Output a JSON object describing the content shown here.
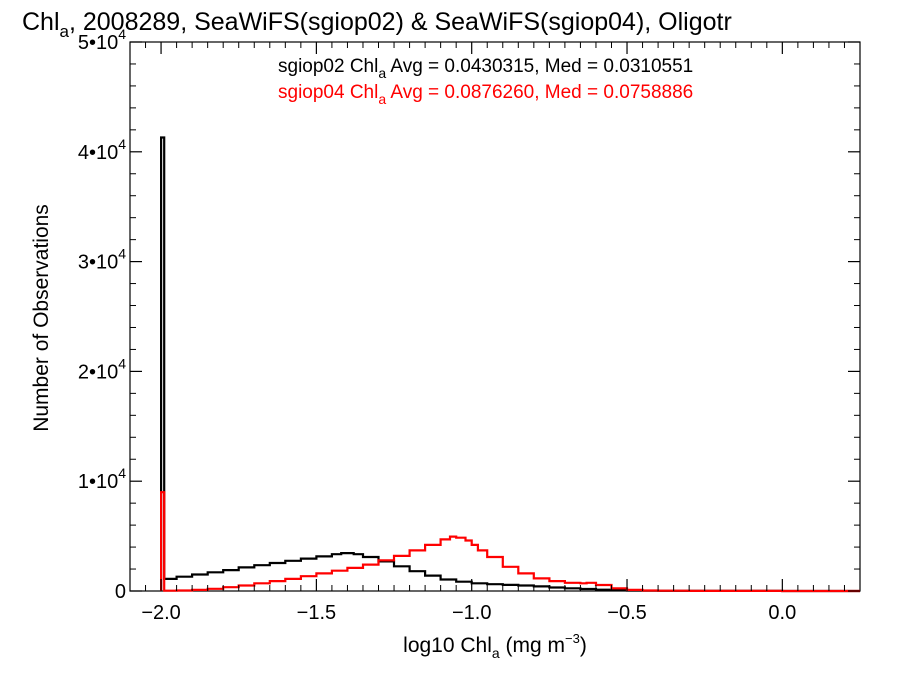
{
  "chart_data": {
    "type": "line",
    "title": {
      "prefix": "Chl",
      "sub": "a",
      "rest": ", 2008289, SeaWiFS(sgiop02) & SeaWiFS(sgiop04), Oligotr"
    },
    "xlabel": {
      "prefix": "log10 Chl",
      "sub": "a",
      "mid": " (mg m",
      "sup": "−3",
      "end": ")"
    },
    "ylabel": "Number of Observations",
    "xlim": [
      -2.1,
      0.25
    ],
    "ylim": [
      0,
      50000
    ],
    "xticks": [
      {
        "v": -2.0,
        "label": "−2.0"
      },
      {
        "v": -1.5,
        "label": "−1.5"
      },
      {
        "v": -1.0,
        "label": "−1.0"
      },
      {
        "v": -0.5,
        "label": "−0.5"
      },
      {
        "v": 0.0,
        "label": "0.0"
      }
    ],
    "yticks": [
      {
        "v": 0,
        "base": "0",
        "exp": ""
      },
      {
        "v": 10000,
        "base": "1•10",
        "exp": "4"
      },
      {
        "v": 20000,
        "base": "2•10",
        "exp": "4"
      },
      {
        "v": 30000,
        "base": "3•10",
        "exp": "4"
      },
      {
        "v": 40000,
        "base": "4•10",
        "exp": "4"
      },
      {
        "v": 50000,
        "base": "5•10",
        "exp": "4"
      }
    ],
    "grid": false,
    "legend_placement": "top-right",
    "series": [
      {
        "name": "sgiop02",
        "legend": {
          "pre": "sgiop02 Chl",
          "sub": "a",
          "post": " Avg = 0.0430315, Med = 0.0310551"
        },
        "color": "#000000",
        "x": [
          -2.0,
          -1.99,
          -1.95,
          -1.9,
          -1.85,
          -1.8,
          -1.75,
          -1.7,
          -1.65,
          -1.6,
          -1.55,
          -1.5,
          -1.45,
          -1.42,
          -1.38,
          -1.35,
          -1.3,
          -1.25,
          -1.2,
          -1.15,
          -1.1,
          -1.05,
          -1.0,
          -0.95,
          -0.9,
          -0.85,
          -0.8,
          -0.75,
          -0.7,
          -0.65,
          -0.6,
          -0.55,
          -0.5,
          -0.45,
          -0.4,
          -0.3,
          -0.2,
          0.0,
          0.25
        ],
        "y": [
          41300,
          1100,
          1300,
          1500,
          1700,
          1900,
          2150,
          2350,
          2550,
          2750,
          2950,
          3150,
          3350,
          3450,
          3350,
          3100,
          2700,
          2250,
          1800,
          1400,
          1050,
          850,
          700,
          620,
          560,
          500,
          420,
          320,
          250,
          180,
          120,
          80,
          50,
          30,
          20,
          10,
          5,
          0,
          0
        ]
      },
      {
        "name": "sgiop04",
        "legend": {
          "pre": "sgiop04 Chl",
          "sub": "a",
          "post": " Avg = 0.0876260, Med = 0.0758886"
        },
        "color": "#ff0000",
        "x": [
          -2.0,
          -1.99,
          -1.95,
          -1.9,
          -1.85,
          -1.8,
          -1.75,
          -1.7,
          -1.65,
          -1.6,
          -1.55,
          -1.5,
          -1.45,
          -1.4,
          -1.35,
          -1.3,
          -1.25,
          -1.2,
          -1.15,
          -1.1,
          -1.07,
          -1.05,
          -1.02,
          -1.0,
          -0.98,
          -0.95,
          -0.9,
          -0.85,
          -0.8,
          -0.75,
          -0.7,
          -0.65,
          -0.63,
          -0.6,
          -0.55,
          -0.5,
          -0.45,
          -0.4,
          -0.3,
          -0.2,
          0.0,
          0.25
        ],
        "y": [
          9000,
          30,
          50,
          100,
          200,
          350,
          500,
          700,
          900,
          1100,
          1350,
          1600,
          1850,
          2100,
          2400,
          2800,
          3200,
          3700,
          4200,
          4700,
          4950,
          4850,
          4600,
          4200,
          3700,
          3100,
          2200,
          1600,
          1150,
          900,
          750,
          700,
          750,
          550,
          250,
          100,
          50,
          25,
          10,
          5,
          0,
          0
        ]
      }
    ]
  }
}
